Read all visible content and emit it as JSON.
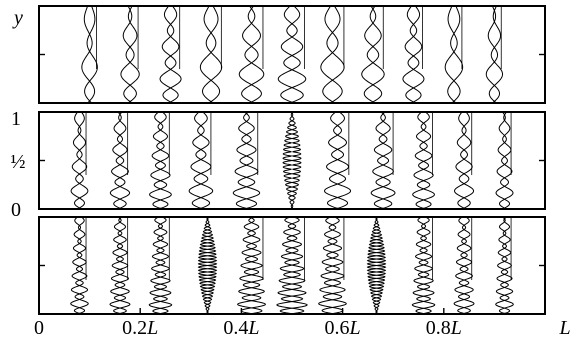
{
  "figure": {
    "y_axis_label": "y",
    "y_ticks": [
      "1",
      "½",
      "0"
    ],
    "x_ticks": [
      {
        "value": 0.0,
        "num": "0",
        "unit": ""
      },
      {
        "value": 0.2,
        "num": "0.2",
        "unit": "L"
      },
      {
        "value": 0.4,
        "num": "0.4",
        "unit": "L"
      },
      {
        "value": 0.6,
        "num": "0.6",
        "unit": "L"
      },
      {
        "value": 0.8,
        "num": "0.8",
        "unit": "L"
      },
      {
        "value": 1.0,
        "num": "",
        "unit": "L"
      }
    ],
    "panels": [
      {
        "name": "top",
        "y_ticks_shown": false,
        "profile_positions": [
          0.1,
          0.18,
          0.26,
          0.34,
          0.42,
          0.5,
          0.58,
          0.66,
          0.74,
          0.82,
          0.9
        ]
      },
      {
        "name": "middle",
        "y_ticks_shown": true,
        "profile_positions": [
          0.08,
          0.16,
          0.24,
          0.32,
          0.41,
          0.5,
          0.59,
          0.68,
          0.76,
          0.84,
          0.92
        ]
      },
      {
        "name": "bottom",
        "y_ticks_shown": false,
        "profile_positions": [
          0.08,
          0.16,
          0.24,
          0.333,
          0.42,
          0.5,
          0.58,
          0.667,
          0.76,
          0.84,
          0.92
        ]
      }
    ]
  }
}
